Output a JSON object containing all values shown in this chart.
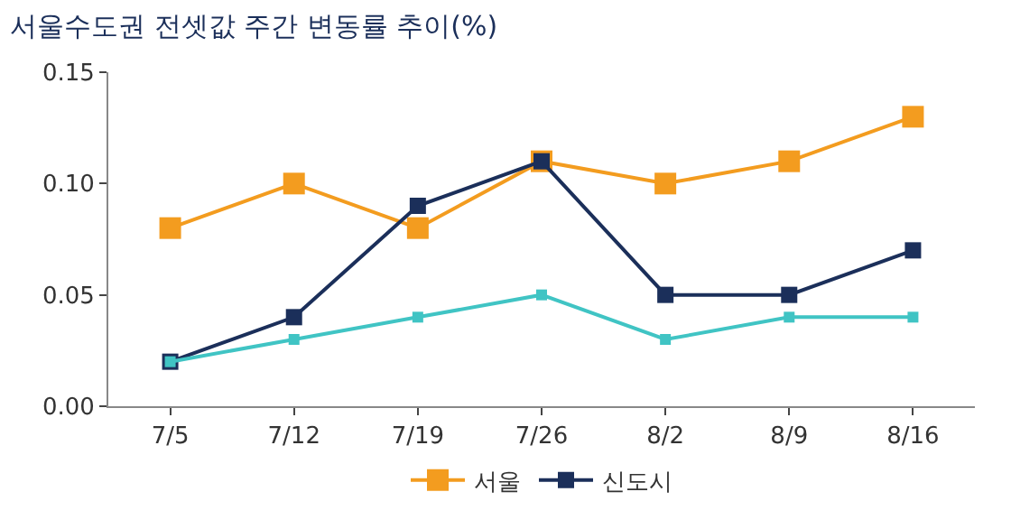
{
  "chart_data": {
    "type": "line",
    "title": "서울수도권 전셋값 주간 변동률 추이(%)",
    "categories": [
      "7/5",
      "7/12",
      "7/19",
      "7/26",
      "8/2",
      "8/9",
      "8/16"
    ],
    "series": [
      {
        "name": "서울",
        "color": "#f39c1f",
        "values": [
          0.08,
          0.1,
          0.08,
          0.11,
          0.1,
          0.11,
          0.13
        ]
      },
      {
        "name": "신도시",
        "color": "#1b2f5a",
        "values": [
          0.02,
          0.04,
          0.09,
          0.11,
          0.05,
          0.05,
          0.07
        ]
      },
      {
        "color": "#40c4c4",
        "values": [
          0.02,
          0.03,
          0.04,
          0.05,
          0.03,
          0.04,
          0.04
        ]
      }
    ],
    "ylim": [
      0,
      0.15
    ],
    "yticks": [
      {
        "value": 0,
        "label": "0.00"
      },
      {
        "value": 0.05,
        "label": "0.05"
      },
      {
        "value": 0.1,
        "label": "0.10"
      },
      {
        "value": 0.15,
        "label": "0.15"
      }
    ],
    "grid": false,
    "legend": "bottom",
    "marker": "square",
    "line_style": "solid"
  }
}
